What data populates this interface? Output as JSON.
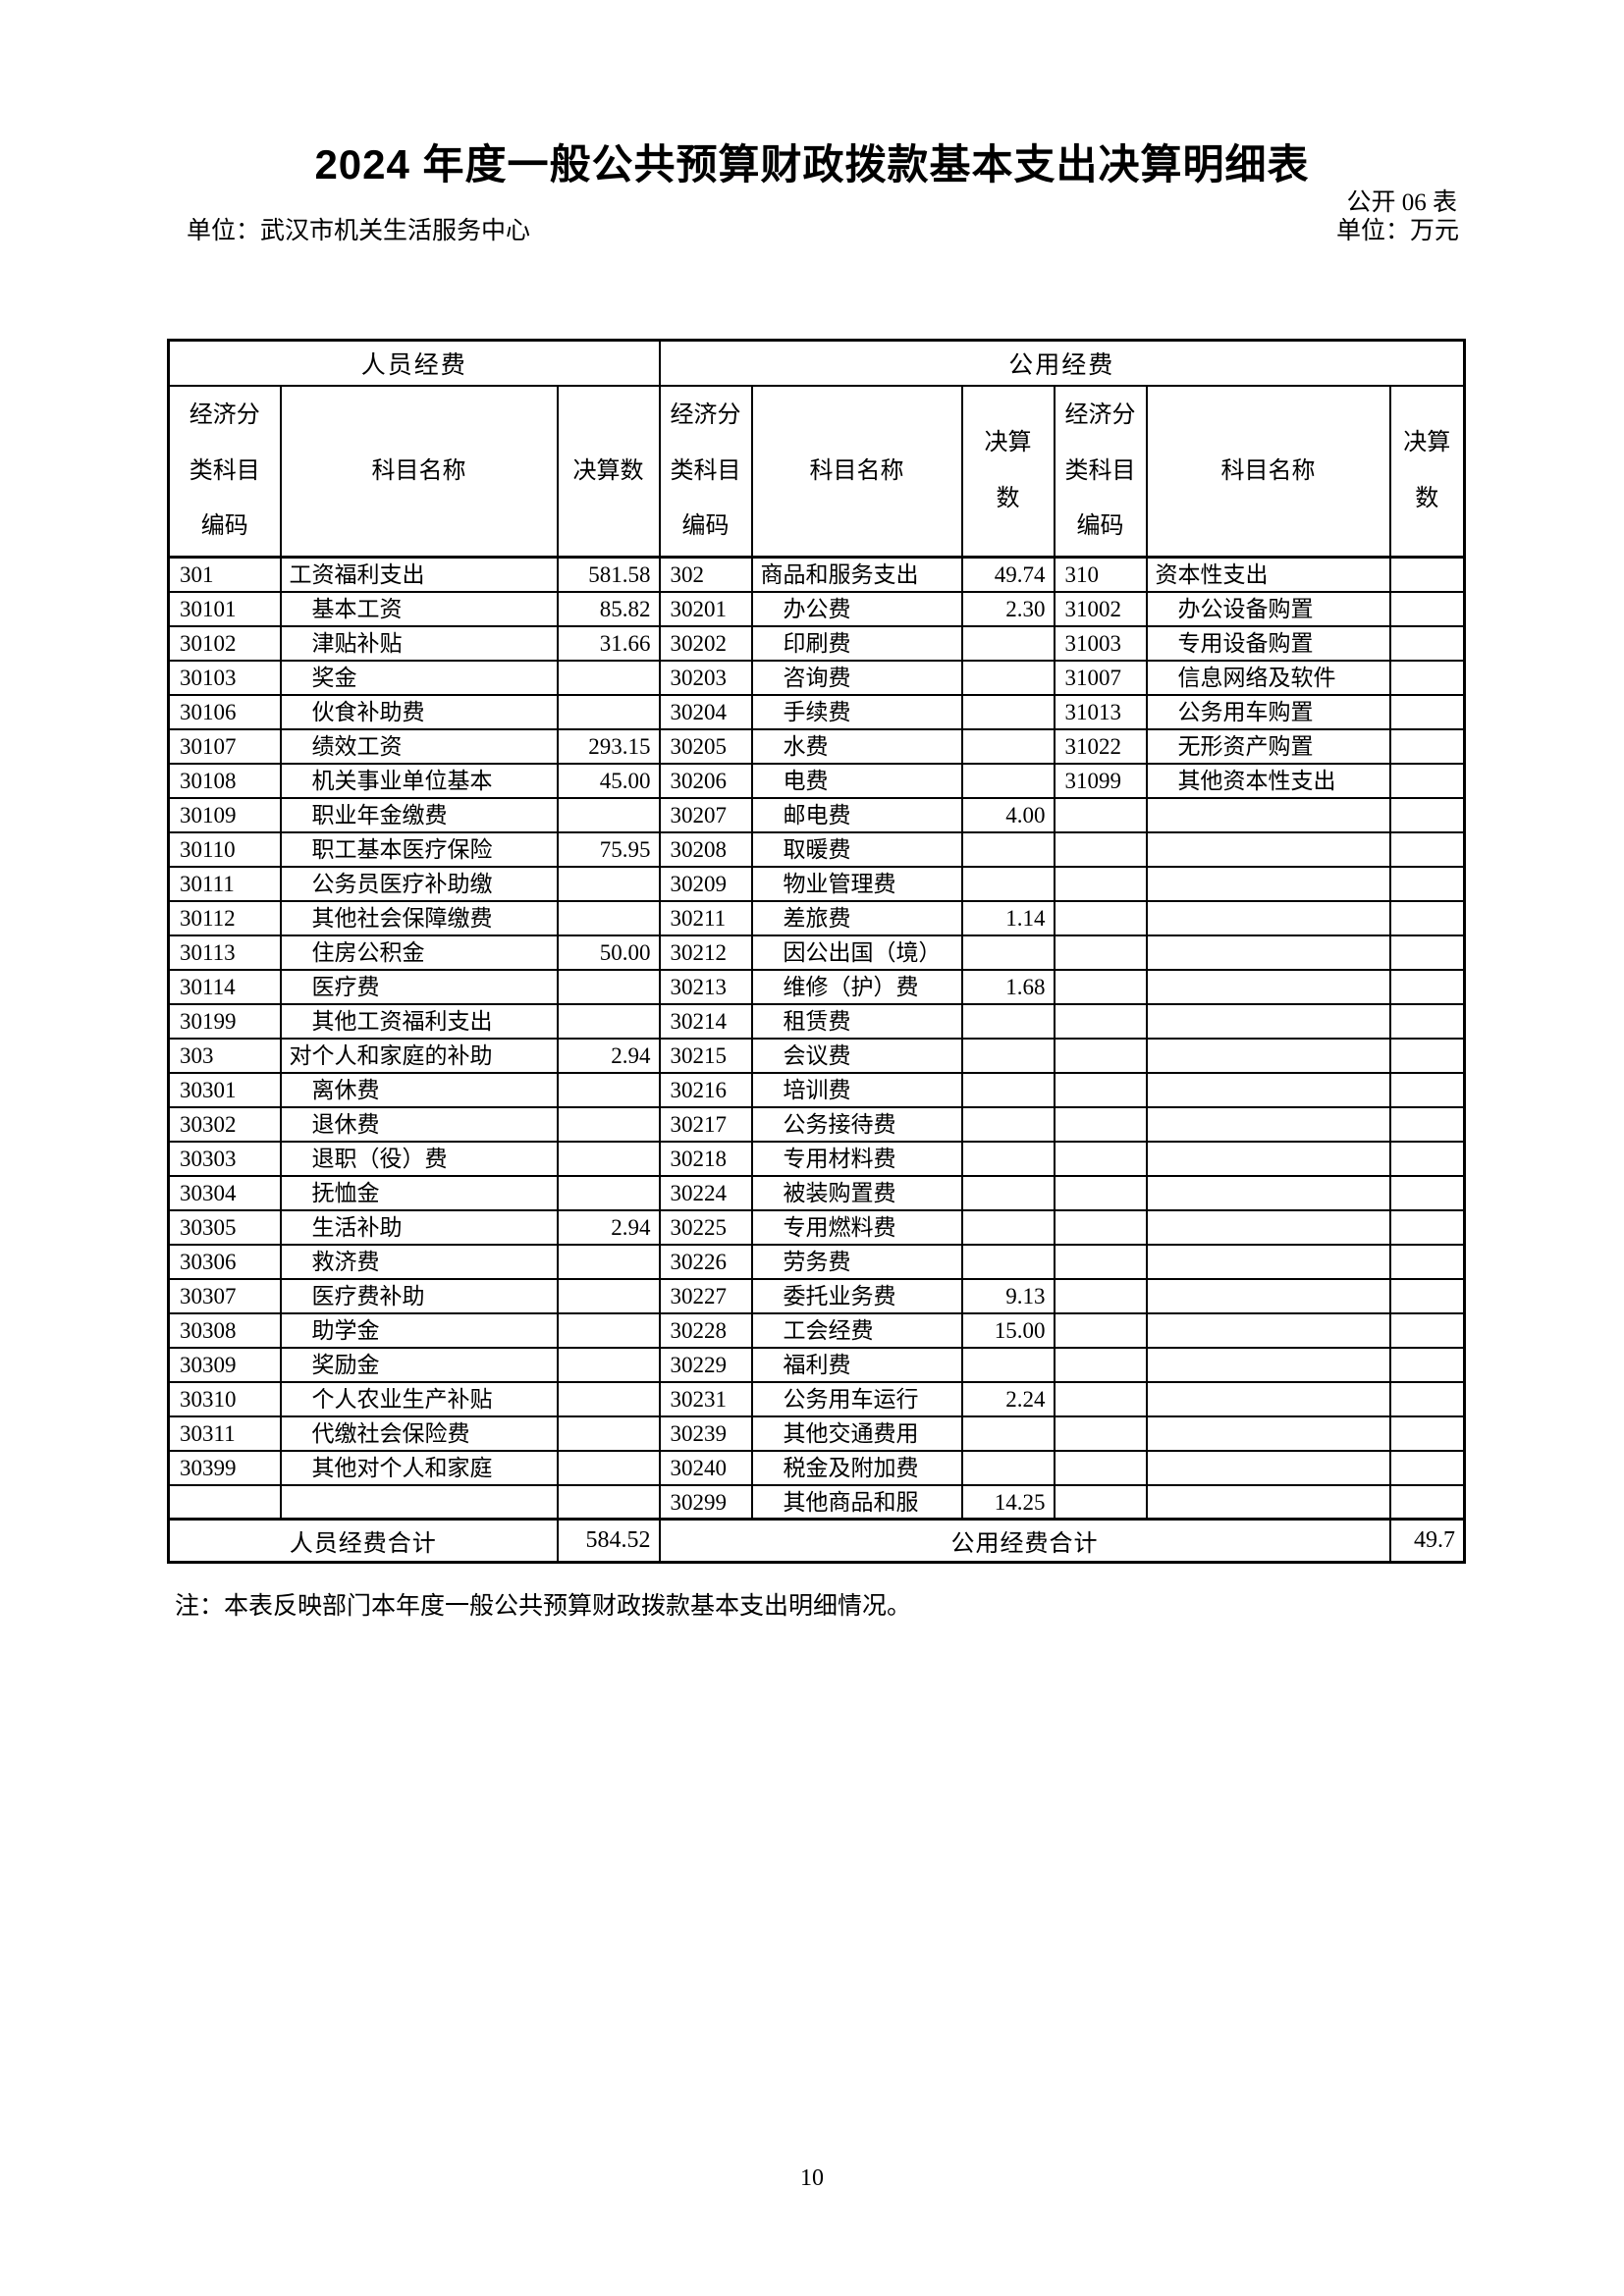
{
  "page": {
    "title": "2024 年度一般公共预算财政拨款基本支出决算明细表",
    "form_label": "公开 06 表",
    "unit_name": "单位：武汉市机关生活服务中心",
    "unit_measure": "单位：万元",
    "note": "注：本表反映部门本年度一般公共预算财政拨款基本支出明细情况。",
    "page_number": "10"
  },
  "table": {
    "group_headers": {
      "personnel": "人员经费",
      "public": "公用经费"
    },
    "column_headers": {
      "code": "经济分\n类科目\n编码",
      "name": "科目名称",
      "value_single": "决算数",
      "value_wrapped": "决算\n数"
    },
    "totals": {
      "personnel_label": "人员经费合计",
      "personnel_value": "584.52",
      "public_label": "公用经费合计",
      "public_value": "49.7"
    },
    "rows": [
      [
        "301",
        "工资福利支出",
        "581.58",
        "302",
        "商品和服务支出",
        "49.74",
        "310",
        "资本性支出",
        ""
      ],
      [
        "30101",
        "　基本工资",
        "85.82",
        "30201",
        "　办公费",
        "2.30",
        "31002",
        "　办公设备购置",
        ""
      ],
      [
        "30102",
        "　津贴补贴",
        "31.66",
        "30202",
        "　印刷费",
        "",
        "31003",
        "　专用设备购置",
        ""
      ],
      [
        "30103",
        "　奖金",
        "",
        "30203",
        "　咨询费",
        "",
        "31007",
        "　信息网络及软件",
        ""
      ],
      [
        "30106",
        "　伙食补助费",
        "",
        "30204",
        "　手续费",
        "",
        "31013",
        "　公务用车购置",
        ""
      ],
      [
        "30107",
        "　绩效工资",
        "293.15",
        "30205",
        "　水费",
        "",
        "31022",
        "　无形资产购置",
        ""
      ],
      [
        "30108",
        "　机关事业单位基本",
        "45.00",
        "30206",
        "　电费",
        "",
        "31099",
        "　其他资本性支出",
        ""
      ],
      [
        "30109",
        "　职业年金缴费",
        "",
        "30207",
        "　邮电费",
        "4.00",
        "",
        "",
        ""
      ],
      [
        "30110",
        "　职工基本医疗保险",
        "75.95",
        "30208",
        "　取暖费",
        "",
        "",
        "",
        ""
      ],
      [
        "30111",
        "　公务员医疗补助缴",
        "",
        "30209",
        "　物业管理费",
        "",
        "",
        "",
        ""
      ],
      [
        "30112",
        "　其他社会保障缴费",
        "",
        "30211",
        "　差旅费",
        "1.14",
        "",
        "",
        ""
      ],
      [
        "30113",
        "　住房公积金",
        "50.00",
        "30212",
        "　因公出国（境）",
        "",
        "",
        "",
        ""
      ],
      [
        "30114",
        "　医疗费",
        "",
        "30213",
        "　维修（护）费",
        "1.68",
        "",
        "",
        ""
      ],
      [
        "30199",
        "　其他工资福利支出",
        "",
        "30214",
        "　租赁费",
        "",
        "",
        "",
        ""
      ],
      [
        "303",
        "对个人和家庭的补助",
        "2.94",
        "30215",
        "　会议费",
        "",
        "",
        "",
        ""
      ],
      [
        "30301",
        "　离休费",
        "",
        "30216",
        "　培训费",
        "",
        "",
        "",
        ""
      ],
      [
        "30302",
        "　退休费",
        "",
        "30217",
        "　公务接待费",
        "",
        "",
        "",
        ""
      ],
      [
        "30303",
        "　退职（役）费",
        "",
        "30218",
        "　专用材料费",
        "",
        "",
        "",
        ""
      ],
      [
        "30304",
        "　抚恤金",
        "",
        "30224",
        "　被装购置费",
        "",
        "",
        "",
        ""
      ],
      [
        "30305",
        "　生活补助",
        "2.94",
        "30225",
        "　专用燃料费",
        "",
        "",
        "",
        ""
      ],
      [
        "30306",
        "　救济费",
        "",
        "30226",
        "　劳务费",
        "",
        "",
        "",
        ""
      ],
      [
        "30307",
        "　医疗费补助",
        "",
        "30227",
        "　委托业务费",
        "9.13",
        "",
        "",
        ""
      ],
      [
        "30308",
        "　助学金",
        "",
        "30228",
        "　工会经费",
        "15.00",
        "",
        "",
        ""
      ],
      [
        "30309",
        "　奖励金",
        "",
        "30229",
        "　福利费",
        "",
        "",
        "",
        ""
      ],
      [
        "30310",
        "　个人农业生产补贴",
        "",
        "30231",
        "　公务用车运行",
        "2.24",
        "",
        "",
        ""
      ],
      [
        "30311",
        "　代缴社会保险费",
        "",
        "30239",
        "　其他交通费用",
        "",
        "",
        "",
        ""
      ],
      [
        "30399",
        "　其他对个人和家庭",
        "",
        "30240",
        "　税金及附加费",
        "",
        "",
        "",
        ""
      ],
      [
        "",
        "",
        "",
        "30299",
        "　其他商品和服",
        "14.25",
        "",
        "",
        ""
      ]
    ]
  }
}
